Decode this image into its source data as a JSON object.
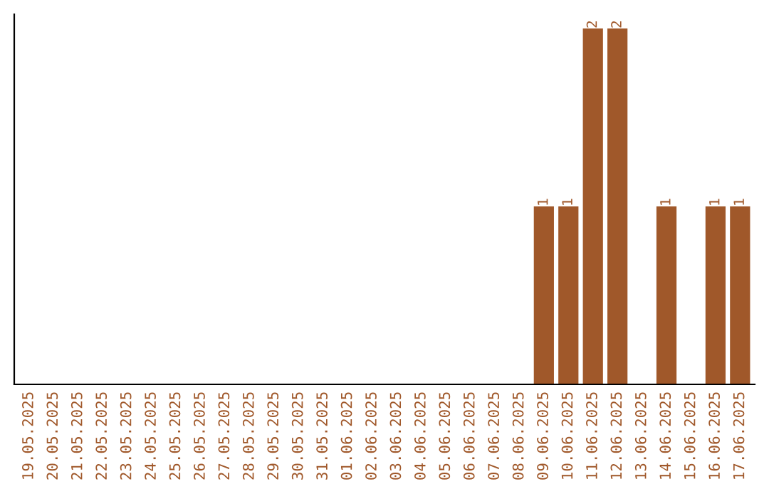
{
  "chart_data": {
    "type": "bar",
    "categories": [
      "19.05.2025",
      "20.05.2025",
      "21.05.2025",
      "22.05.2025",
      "23.05.2025",
      "24.05.2025",
      "25.05.2025",
      "26.05.2025",
      "27.05.2025",
      "28.05.2025",
      "29.05.2025",
      "30.05.2025",
      "31.05.2025",
      "01.06.2025",
      "02.06.2025",
      "03.06.2025",
      "04.06.2025",
      "05.06.2025",
      "06.06.2025",
      "07.06.2025",
      "08.06.2025",
      "09.06.2025",
      "10.06.2025",
      "11.06.2025",
      "12.06.2025",
      "13.06.2025",
      "14.06.2025",
      "15.06.2025",
      "16.06.2025",
      "17.06.2025"
    ],
    "values": [
      null,
      null,
      null,
      null,
      null,
      null,
      null,
      null,
      null,
      null,
      null,
      null,
      null,
      null,
      null,
      null,
      null,
      null,
      null,
      null,
      null,
      1,
      1,
      2,
      2,
      null,
      1,
      null,
      1,
      1
    ],
    "value_labels": [
      null,
      null,
      null,
      null,
      null,
      null,
      null,
      null,
      null,
      null,
      null,
      null,
      null,
      null,
      null,
      null,
      null,
      null,
      null,
      null,
      null,
      "1",
      "1",
      "2",
      "2",
      null,
      "1",
      null,
      "1",
      "1"
    ],
    "color": "#a0582a",
    "tick_labels": "x",
    "grid": false
  }
}
